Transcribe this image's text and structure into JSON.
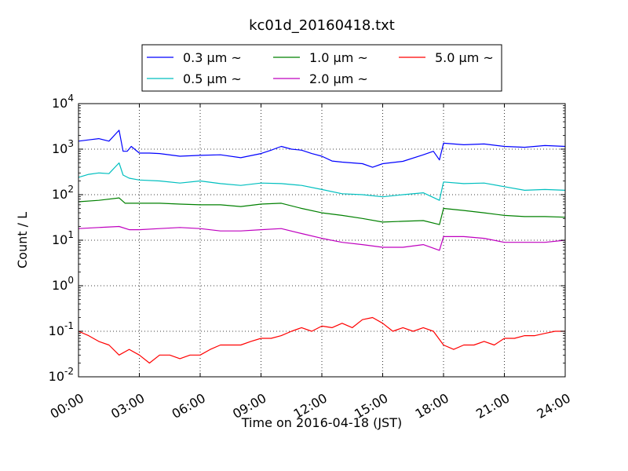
{
  "chart_data": {
    "type": "line",
    "title": "kc01d_20160418.txt",
    "xlabel": "Time on 2016-04-18 (JST)",
    "ylabel": "Count / L",
    "x_ticks": [
      "00:00",
      "03:00",
      "06:00",
      "09:00",
      "12:00",
      "15:00",
      "18:00",
      "21:00",
      "24:00"
    ],
    "y_ticks": [
      {
        "base": "10",
        "exp": "-2",
        "value": 0.01
      },
      {
        "base": "10",
        "exp": "-1",
        "value": 0.1
      },
      {
        "base": "10",
        "exp": "0",
        "value": 1
      },
      {
        "base": "10",
        "exp": "1",
        "value": 10
      },
      {
        "base": "10",
        "exp": "2",
        "value": 100
      },
      {
        "base": "10",
        "exp": "3",
        "value": 1000
      },
      {
        "base": "10",
        "exp": "4",
        "value": 10000
      }
    ],
    "xlim": [
      "00:00",
      "24:00"
    ],
    "ylim": [
      0.01,
      10000
    ],
    "yscale": "log",
    "grid": true,
    "legend_placement": "top-center",
    "series": [
      {
        "name": "0.3 μm ~",
        "color": "#0000ff",
        "x": [
          0,
          0.5,
          1,
          1.5,
          2,
          2.2,
          2.4,
          2.6,
          3,
          3.5,
          4,
          5,
          6,
          7,
          8,
          9,
          9.5,
          10,
          10.5,
          11,
          11.5,
          12,
          12.5,
          13,
          14,
          14.5,
          15,
          16,
          17,
          17.5,
          17.8,
          18,
          19,
          20,
          21,
          22,
          23,
          24
        ],
        "values": [
          1500,
          1600,
          1700,
          1500,
          2600,
          900,
          900,
          1150,
          820,
          820,
          800,
          700,
          730,
          750,
          650,
          800,
          950,
          1150,
          1000,
          950,
          800,
          700,
          550,
          520,
          480,
          400,
          480,
          540,
          750,
          900,
          580,
          1350,
          1250,
          1300,
          1150,
          1100,
          1200,
          1150
        ]
      },
      {
        "name": "0.5 μm ~",
        "color": "#00bfbf",
        "x": [
          0,
          0.5,
          1,
          1.5,
          2,
          2.2,
          2.5,
          3,
          4,
          5,
          6,
          7,
          8,
          9,
          10,
          11,
          12,
          13,
          14,
          15,
          16,
          17,
          17.8,
          18,
          19,
          20,
          21,
          22,
          23,
          24
        ],
        "values": [
          240,
          280,
          300,
          290,
          500,
          270,
          230,
          210,
          200,
          180,
          200,
          175,
          160,
          180,
          175,
          160,
          130,
          105,
          100,
          90,
          100,
          110,
          75,
          190,
          175,
          180,
          150,
          125,
          130,
          125
        ]
      },
      {
        "name": "1.0 μm ~",
        "color": "#008000",
        "x": [
          0,
          1,
          2,
          2.3,
          3,
          4,
          5,
          6,
          7,
          8,
          9,
          10,
          11,
          12,
          13,
          14,
          15,
          16,
          17,
          17.8,
          18,
          19,
          20,
          21,
          22,
          23,
          24
        ],
        "values": [
          70,
          75,
          85,
          65,
          65,
          65,
          62,
          60,
          60,
          55,
          62,
          65,
          50,
          40,
          35,
          30,
          25,
          26,
          27,
          22,
          50,
          45,
          40,
          35,
          33,
          33,
          32
        ]
      },
      {
        "name": "2.0 μm ~",
        "color": "#bf00bf",
        "x": [
          0,
          1,
          2,
          2.5,
          3,
          4,
          5,
          6,
          7,
          8,
          9,
          10,
          11,
          12,
          13,
          14,
          15,
          16,
          17,
          17.8,
          18,
          19,
          20,
          21,
          22,
          23,
          24
        ],
        "values": [
          18,
          19,
          20,
          17,
          17,
          18,
          19,
          18,
          16,
          16,
          17,
          18,
          14,
          11,
          9,
          8,
          7,
          7,
          8,
          6,
          12,
          12,
          11,
          9,
          9,
          9,
          10
        ]
      },
      {
        "name": "5.0 μm ~",
        "color": "#ff0000",
        "x": [
          0,
          0.5,
          1,
          1.5,
          2,
          2.5,
          3,
          3.5,
          4,
          4.5,
          5,
          5.5,
          6,
          6.5,
          7,
          7.5,
          8,
          8.5,
          9,
          9.5,
          10,
          10.5,
          11,
          11.5,
          12,
          12.5,
          13,
          13.5,
          14,
          14.5,
          15,
          15.5,
          16,
          16.5,
          17,
          17.5,
          18,
          18.5,
          19,
          19.5,
          20,
          20.5,
          21,
          21.5,
          22,
          22.5,
          23,
          23.5,
          24
        ],
        "values": [
          0.1,
          0.08,
          0.06,
          0.05,
          0.03,
          0.04,
          0.03,
          0.02,
          0.03,
          0.03,
          0.025,
          0.03,
          0.03,
          0.04,
          0.05,
          0.05,
          0.05,
          0.06,
          0.07,
          0.07,
          0.08,
          0.1,
          0.12,
          0.1,
          0.13,
          0.12,
          0.15,
          0.12,
          0.18,
          0.2,
          0.15,
          0.1,
          0.12,
          0.1,
          0.12,
          0.1,
          0.05,
          0.04,
          0.05,
          0.05,
          0.06,
          0.05,
          0.07,
          0.07,
          0.08,
          0.08,
          0.09,
          0.1,
          0.1
        ]
      }
    ]
  }
}
